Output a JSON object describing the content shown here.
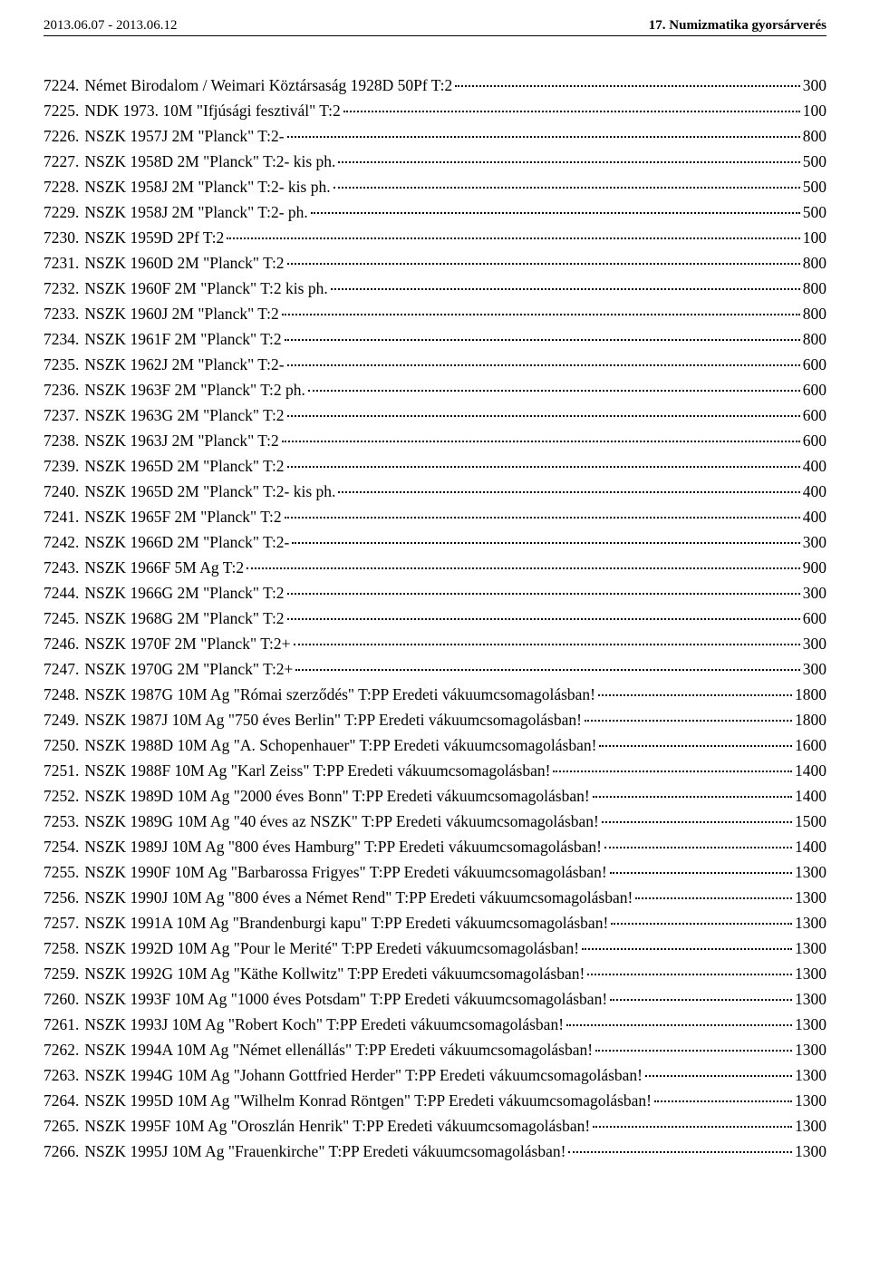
{
  "header": {
    "left": "2013.06.07 - 2013.06.12",
    "right": "17. Numizmatika gyorsárverés"
  },
  "rows": [
    {
      "lot": "7224.",
      "desc": "Német Birodalom / Weimari Köztársaság 1928D 50Pf T:2",
      "price": "300"
    },
    {
      "lot": "7225.",
      "desc": "NDK 1973. 10M \"Ifjúsági fesztivál\" T:2",
      "price": "100"
    },
    {
      "lot": "7226.",
      "desc": "NSZK 1957J 2M \"Planck\" T:2-",
      "price": "800"
    },
    {
      "lot": "7227.",
      "desc": "NSZK 1958D 2M \"Planck\" T:2- kis ph.",
      "price": "500"
    },
    {
      "lot": "7228.",
      "desc": "NSZK 1958J 2M \"Planck\" T:2- kis ph.",
      "price": "500"
    },
    {
      "lot": "7229.",
      "desc": "NSZK 1958J 2M \"Planck\" T:2- ph.",
      "price": "500"
    },
    {
      "lot": "7230.",
      "desc": "NSZK 1959D 2Pf T:2",
      "price": "100"
    },
    {
      "lot": "7231.",
      "desc": "NSZK 1960D 2M \"Planck\" T:2",
      "price": "800"
    },
    {
      "lot": "7232.",
      "desc": "NSZK 1960F 2M \"Planck\" T:2 kis ph.",
      "price": "800"
    },
    {
      "lot": "7233.",
      "desc": "NSZK 1960J 2M \"Planck\" T:2",
      "price": "800"
    },
    {
      "lot": "7234.",
      "desc": "NSZK 1961F 2M \"Planck\" T:2",
      "price": "800"
    },
    {
      "lot": "7235.",
      "desc": "NSZK 1962J 2M \"Planck\" T:2-",
      "price": "600"
    },
    {
      "lot": "7236.",
      "desc": "NSZK 1963F 2M \"Planck\" T:2 ph.",
      "price": "600"
    },
    {
      "lot": "7237.",
      "desc": "NSZK 1963G 2M \"Planck\" T:2",
      "price": "600"
    },
    {
      "lot": "7238.",
      "desc": "NSZK 1963J 2M \"Planck\" T:2",
      "price": "600"
    },
    {
      "lot": "7239.",
      "desc": "NSZK 1965D 2M \"Planck\" T:2",
      "price": "400"
    },
    {
      "lot": "7240.",
      "desc": "NSZK 1965D 2M \"Planck\" T:2- kis ph.",
      "price": "400"
    },
    {
      "lot": "7241.",
      "desc": "NSZK 1965F 2M \"Planck\" T:2",
      "price": "400"
    },
    {
      "lot": "7242.",
      "desc": "NSZK 1966D 2M \"Planck\" T:2-",
      "price": "300"
    },
    {
      "lot": "7243.",
      "desc": "NSZK 1966F 5M Ag T:2",
      "price": "900"
    },
    {
      "lot": "7244.",
      "desc": "NSZK 1966G 2M \"Planck\" T:2",
      "price": "300"
    },
    {
      "lot": "7245.",
      "desc": "NSZK 1968G 2M \"Planck\" T:2",
      "price": "600"
    },
    {
      "lot": "7246.",
      "desc": "NSZK 1970F 2M \"Planck\" T:2+",
      "price": "300"
    },
    {
      "lot": "7247.",
      "desc": "NSZK 1970G 2M \"Planck\" T:2+",
      "price": "300"
    },
    {
      "lot": "7248.",
      "desc": "NSZK 1987G 10M Ag \"Római szerződés\" T:PP Eredeti vákuumcsomagolásban!",
      "price": "1800"
    },
    {
      "lot": "7249.",
      "desc": "NSZK 1987J 10M Ag \"750 éves Berlin\" T:PP Eredeti vákuumcsomagolásban!",
      "price": "1800"
    },
    {
      "lot": "7250.",
      "desc": "NSZK 1988D 10M Ag \"A. Schopenhauer\" T:PP Eredeti vákuumcsomagolásban!",
      "price": "1600"
    },
    {
      "lot": "7251.",
      "desc": "NSZK 1988F 10M Ag \"Karl Zeiss\" T:PP Eredeti vákuumcsomagolásban!",
      "price": "1400"
    },
    {
      "lot": "7252.",
      "desc": "NSZK 1989D 10M Ag \"2000 éves Bonn\" T:PP Eredeti vákuumcsomagolásban!",
      "price": "1400"
    },
    {
      "lot": "7253.",
      "desc": "NSZK 1989G 10M Ag \"40 éves az NSZK\" T:PP Eredeti vákuumcsomagolásban!",
      "price": "1500"
    },
    {
      "lot": "7254.",
      "desc": "NSZK 1989J 10M Ag \"800 éves Hamburg\" T:PP Eredeti vákuumcsomagolásban!",
      "price": "1400"
    },
    {
      "lot": "7255.",
      "desc": "NSZK 1990F 10M Ag \"Barbarossa Frigyes\" T:PP Eredeti vákuumcsomagolásban!",
      "price": "1300"
    },
    {
      "lot": "7256.",
      "desc": "NSZK 1990J 10M Ag \"800 éves a Német Rend\" T:PP Eredeti vákuumcsomagolásban!",
      "price": "1300"
    },
    {
      "lot": "7257.",
      "desc": "NSZK 1991A 10M Ag \"Brandenburgi kapu\" T:PP Eredeti vákuumcsomagolásban!",
      "price": "1300"
    },
    {
      "lot": "7258.",
      "desc": "NSZK 1992D 10M Ag \"Pour le Merité\" T:PP Eredeti vákuumcsomagolásban!",
      "price": "1300"
    },
    {
      "lot": "7259.",
      "desc": "NSZK 1992G 10M Ag \"Käthe Kollwitz\" T:PP Eredeti vákuumcsomagolásban!",
      "price": "1300"
    },
    {
      "lot": "7260.",
      "desc": "NSZK 1993F 10M Ag \"1000 éves Potsdam\" T:PP Eredeti vákuumcsomagolásban!",
      "price": "1300"
    },
    {
      "lot": "7261.",
      "desc": "NSZK 1993J 10M Ag \"Robert Koch\" T:PP Eredeti vákuumcsomagolásban!",
      "price": "1300"
    },
    {
      "lot": "7262.",
      "desc": "NSZK 1994A 10M Ag \"Német ellenállás\" T:PP Eredeti vákuumcsomagolásban!",
      "price": "1300"
    },
    {
      "lot": "7263.",
      "desc": "NSZK 1994G 10M Ag \"Johann Gottfried Herder\" T:PP Eredeti vákuumcsomagolásban!",
      "price": "1300"
    },
    {
      "lot": "7264.",
      "desc": "NSZK 1995D 10M Ag \"Wilhelm Konrad Röntgen\" T:PP Eredeti vákuumcsomagolásban!",
      "price": "1300"
    },
    {
      "lot": "7265.",
      "desc": "NSZK 1995F 10M Ag \"Oroszlán Henrik\" T:PP Eredeti vákuumcsomagolásban!",
      "price": "1300"
    },
    {
      "lot": "7266.",
      "desc": "NSZK 1995J 10M Ag \"Frauenkirche\" T:PP Eredeti vákuumcsomagolásban!",
      "price": "1300"
    }
  ]
}
